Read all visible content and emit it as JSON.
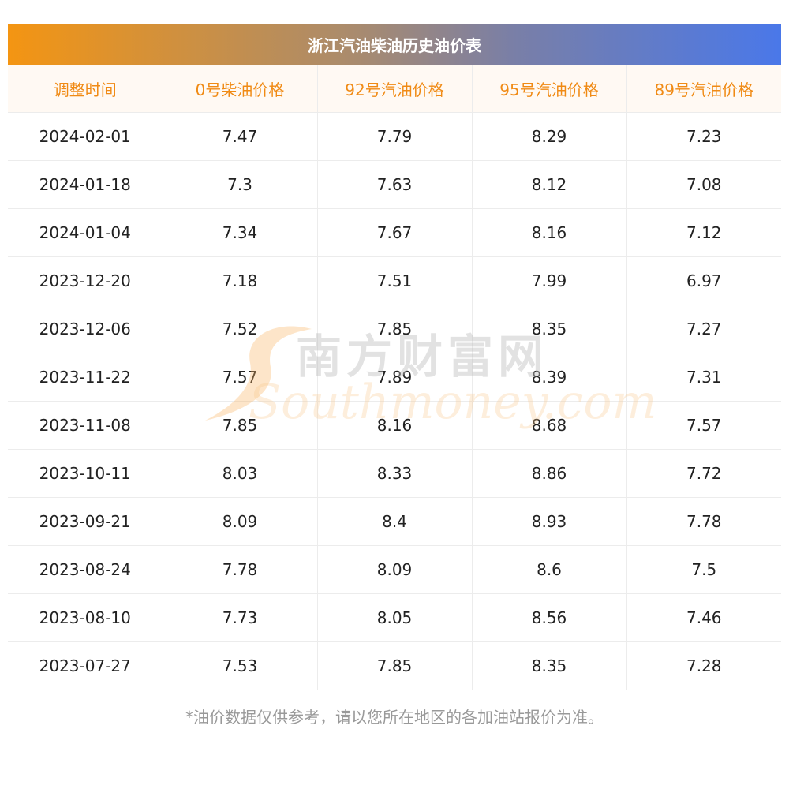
{
  "table": {
    "title": "浙江汽油柴油历史油价表",
    "headers": [
      "调整时间",
      "0号柴油价格",
      "92号汽油价格",
      "95号汽油价格",
      "89号汽油价格"
    ],
    "rows": [
      [
        "2024-02-01",
        "7.47",
        "7.79",
        "8.29",
        "7.23"
      ],
      [
        "2024-01-18",
        "7.3",
        "7.63",
        "8.12",
        "7.08"
      ],
      [
        "2024-01-04",
        "7.34",
        "7.67",
        "8.16",
        "7.12"
      ],
      [
        "2023-12-20",
        "7.18",
        "7.51",
        "7.99",
        "6.97"
      ],
      [
        "2023-12-06",
        "7.52",
        "7.85",
        "8.35",
        "7.27"
      ],
      [
        "2023-11-22",
        "7.57",
        "7.89",
        "8.39",
        "7.31"
      ],
      [
        "2023-11-08",
        "7.85",
        "8.16",
        "8.68",
        "7.57"
      ],
      [
        "2023-10-11",
        "8.03",
        "8.33",
        "8.86",
        "7.72"
      ],
      [
        "2023-09-21",
        "8.09",
        "8.4",
        "8.93",
        "7.78"
      ],
      [
        "2023-08-24",
        "7.78",
        "8.09",
        "8.6",
        "7.5"
      ],
      [
        "2023-08-10",
        "7.73",
        "8.05",
        "8.56",
        "7.46"
      ],
      [
        "2023-07-27",
        "7.53",
        "7.85",
        "8.35",
        "7.28"
      ]
    ]
  },
  "footnote": "*油价数据仅供参考，请以您所在地区的各加油站报价为准。",
  "watermark": {
    "logo_text": "南方财富网",
    "url_text": "Southmoney.com"
  },
  "colors": {
    "title_gradient_start": "#f49512",
    "title_gradient_end": "#4a78e9",
    "header_text": "#f08a14",
    "header_bg": "#fff9f3",
    "body_text": "#222222",
    "footnote_text": "#999999"
  }
}
